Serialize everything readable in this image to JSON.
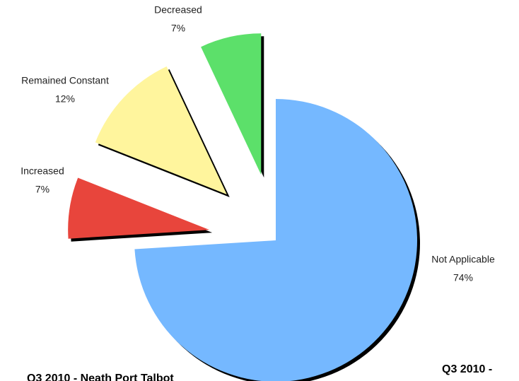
{
  "chart_data": {
    "type": "pie",
    "categories": [
      "Not Applicable",
      "Increased",
      "Remained Constant",
      "Decreased"
    ],
    "values": [
      74,
      7,
      12,
      7
    ],
    "value_labels": [
      "74%",
      "7%",
      "12%",
      "7%"
    ],
    "colors": [
      "#75b8ff",
      "#e8453c",
      "#fff59d",
      "#5ce06a"
    ],
    "annotations": [
      "Q3 2010 - Neath Port Talbot",
      "Q3 2010 -"
    ]
  }
}
